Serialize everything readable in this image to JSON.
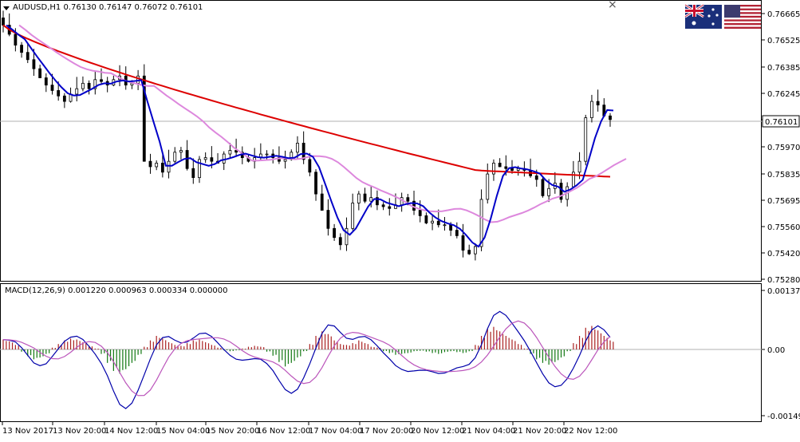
{
  "window": {
    "close_glyph": "×"
  },
  "main_pane": {
    "header": "AUDUSD,H1  0.76130 0.76147 0.76072 0.76101",
    "current_price": "0.76101",
    "price_axis": [
      "0.76665",
      "0.76525",
      "0.76385",
      "0.76245",
      "0.76105",
      "0.75970",
      "0.75835",
      "0.75695",
      "0.75560",
      "0.75420",
      "0.75280"
    ]
  },
  "indicator_pane": {
    "header": "MACD(12,26,9) 0.001220 0.000963 0.000334 0.000000",
    "axis": [
      "0.001376",
      "0.00",
      "-0.001497"
    ]
  },
  "time_axis": [
    "13 Nov 2017",
    "13 Nov 20:00",
    "14 Nov 12:00",
    "15 Nov 04:00",
    "15 Nov 20:00",
    "16 Nov 12:00",
    "17 Nov 04:00",
    "17 Nov 20:00",
    "20 Nov 12:00",
    "21 Nov 04:00",
    "21 Nov 20:00",
    "22 Nov 12:00"
  ],
  "flags": [
    {
      "name": "australia-flag-icon"
    },
    {
      "name": "usa-flag-icon"
    }
  ],
  "colors": {
    "candles": "#000000",
    "ma_fast": "#0000c8",
    "ma_mid": "#dd88dd",
    "ma_slow": "#dd0000",
    "hist_up": "#aa2222",
    "hist_down": "#117711",
    "macd_line": "#0000aa",
    "signal_line": "#bb55bb",
    "grid": "#b0b0b0"
  },
  "chart_data": [
    {
      "type": "candlestick",
      "symbol": "AUDUSD",
      "timeframe": "H1",
      "ylim": [
        0.7522,
        0.7675
      ],
      "ohlc_last": {
        "open": 0.7613,
        "high": 0.76147,
        "low": 0.76072,
        "close": 0.76101
      },
      "closes": [
        0.7662,
        0.7657,
        0.7651,
        0.7647,
        0.7643,
        0.7638,
        0.7633,
        0.7629,
        0.7626,
        0.7623,
        0.762,
        0.7624,
        0.7627,
        0.763,
        0.7627,
        0.7632,
        0.7631,
        0.7629,
        0.7632,
        0.7634,
        0.7629,
        0.763,
        0.7634,
        0.7587,
        0.7584,
        0.7586,
        0.7581,
        0.7587,
        0.7592,
        0.7593,
        0.7583,
        0.7578,
        0.7588,
        0.7589,
        0.7587,
        0.7586,
        0.7591,
        0.7593,
        0.7592,
        0.7589,
        0.7587,
        0.7589,
        0.7591,
        0.7591,
        0.7589,
        0.7587,
        0.7588,
        0.7592,
        0.7597,
        0.7588,
        0.7581,
        0.7569,
        0.756,
        0.755,
        0.7545,
        0.7541,
        0.755,
        0.7564,
        0.7569,
        0.7565,
        0.7567,
        0.7563,
        0.7562,
        0.7561,
        0.7563,
        0.7567,
        0.7565,
        0.756,
        0.7557,
        0.7553,
        0.7554,
        0.7552,
        0.7552,
        0.7549,
        0.7546,
        0.7538,
        0.7536,
        0.754,
        0.7566,
        0.758,
        0.7586,
        0.7584,
        0.7583,
        0.7582,
        0.7583,
        0.7582,
        0.7579,
        0.7577,
        0.7568,
        0.7572,
        0.7575,
        0.7566,
        0.7573,
        0.7581,
        0.7587,
        0.7611,
        0.762,
        0.7618,
        0.7612,
        0.761
      ],
      "series": [
        {
          "values_start": 0.7663,
          "values_end": 0.7612
        },
        {
          "values_start": 0.7663,
          "values_end": 0.759
        },
        {
          "values_start": 0.7662,
          "values_end": 0.7586
        }
      ]
    },
    {
      "type": "bar",
      "title": "MACD(12,26,9)",
      "ylim": [
        -0.001497,
        0.001376
      ],
      "values": [
        0.00022,
        0.00018,
        0.0001,
        -5e-05,
        -0.00015,
        -0.00022,
        -0.00018,
        -0.0001,
        4e-05,
        0.00012,
        0.0002,
        0.00024,
        0.00022,
        0.00016,
        8e-05,
        2e-05,
        -0.0001,
        -0.0003,
        -0.00048,
        -0.00054,
        -0.00044,
        -0.0003,
        -0.00012,
        6e-05,
        0.0002,
        0.0003,
        0.00024,
        0.00016,
        0.0001,
        8e-05,
        0.00014,
        0.0002,
        0.00022,
        0.00016,
        0.0001,
        4e-05,
        -2e-05,
        -4e-05,
        -2e-05,
        2e-05,
        6e-05,
        8e-05,
        6e-05,
        -5e-05,
        -0.00014,
        -0.00028,
        -0.00038,
        -0.0003,
        -0.00018,
        -4e-05,
        0.00012,
        0.0003,
        0.0004,
        0.00034,
        0.0002,
        0.00012,
        0.0001,
        0.00014,
        0.0002,
        0.00014,
        6e-05,
        4e-05,
        -4e-05,
        -8e-05,
        -0.00012,
        -0.0001,
        -8e-05,
        -4e-05,
        -3e-05,
        -5e-05,
        -8e-05,
        -0.0001,
        -6e-05,
        -4e-05,
        -6e-05,
        -8e-05,
        -4e-05,
        0.0001,
        0.0003,
        0.00046,
        0.0005,
        0.0004,
        0.0003,
        0.00022,
        0.00012,
        2e-05,
        -0.0001,
        -0.00022,
        -0.0003,
        -0.00034,
        -0.00028,
        -0.00018,
        -4e-05,
        0.00014,
        0.0003,
        0.00048,
        0.00052,
        0.00042,
        0.0003,
        0.0002
      ]
    }
  ]
}
